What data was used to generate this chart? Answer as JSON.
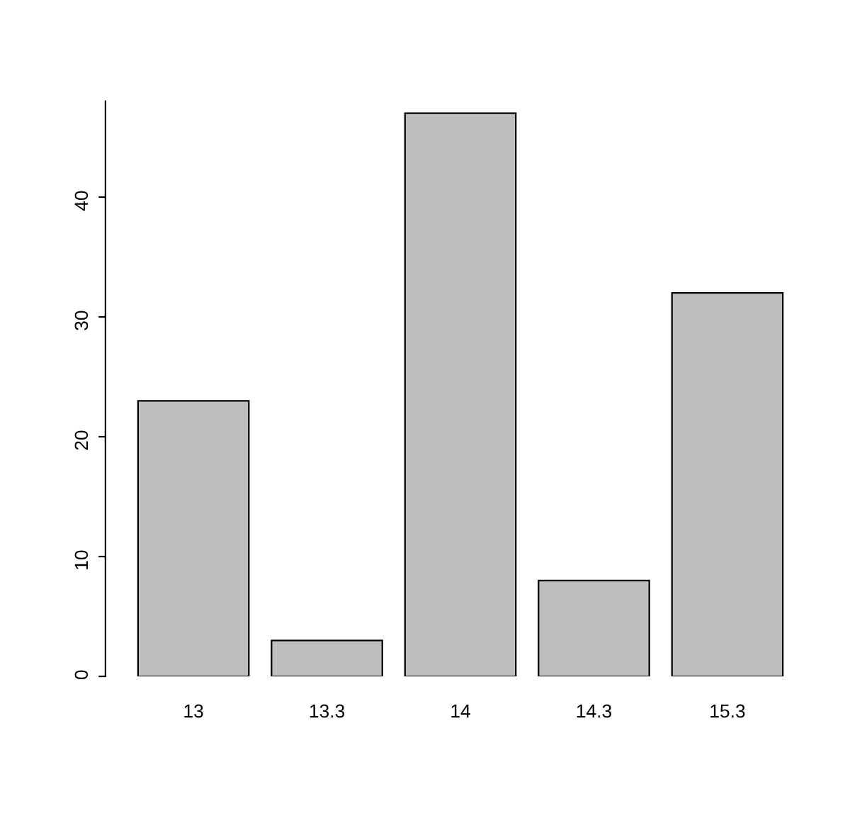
{
  "chart_data": {
    "type": "bar",
    "categories": [
      "13",
      "13.3",
      "14",
      "14.3",
      "15.3"
    ],
    "values": [
      23,
      3,
      47,
      8,
      32
    ],
    "color": "#bebebe",
    "ylim": [
      0,
      48
    ],
    "yticks": [
      0,
      10,
      20,
      30,
      40
    ],
    "grid": false
  }
}
